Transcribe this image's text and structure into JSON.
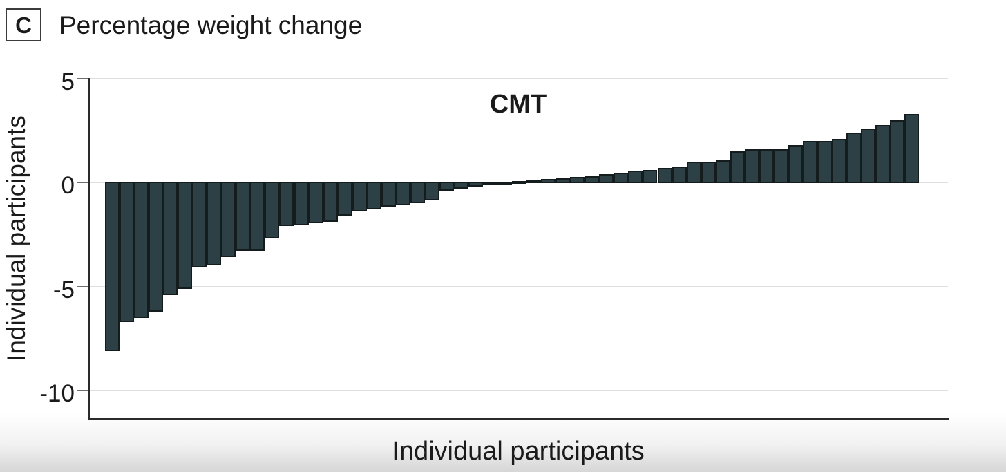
{
  "panel": {
    "label": "C",
    "title": "Percentage weight change"
  },
  "chart_data": {
    "type": "bar",
    "title": "CMT",
    "xlabel": "Individual participants",
    "ylabel": "Individual participants",
    "yticks": [
      5,
      0,
      -5,
      -10
    ],
    "ytick_labels": [
      "5",
      "0",
      "-5",
      "-10"
    ],
    "ylim": [
      -11.4,
      5
    ],
    "grid": true,
    "legend_position": "none",
    "n_bars": 56,
    "values": [
      -8.1,
      -6.7,
      -6.5,
      -6.2,
      -5.4,
      -5.1,
      -4.1,
      -4.0,
      -3.6,
      -3.3,
      -3.3,
      -2.7,
      -2.1,
      -2.05,
      -1.95,
      -1.9,
      -1.6,
      -1.4,
      -1.3,
      -1.15,
      -1.1,
      -1.0,
      -0.85,
      -0.4,
      -0.3,
      -0.2,
      -0.1,
      -0.05,
      0.05,
      0.1,
      0.15,
      0.2,
      0.25,
      0.3,
      0.4,
      0.45,
      0.55,
      0.6,
      0.7,
      0.75,
      1.0,
      1.0,
      1.05,
      1.5,
      1.6,
      1.6,
      1.6,
      1.8,
      2.0,
      2.0,
      2.1,
      2.4,
      2.6,
      2.75,
      3.0,
      3.3
    ],
    "bar_color": "#2d4046",
    "bar_border_color": "#141c1e",
    "grid_color": "#dedede",
    "axis_color": "#2a2a2a",
    "tick_color": "#6e6e6e",
    "text_color": "#1a1a1a"
  }
}
